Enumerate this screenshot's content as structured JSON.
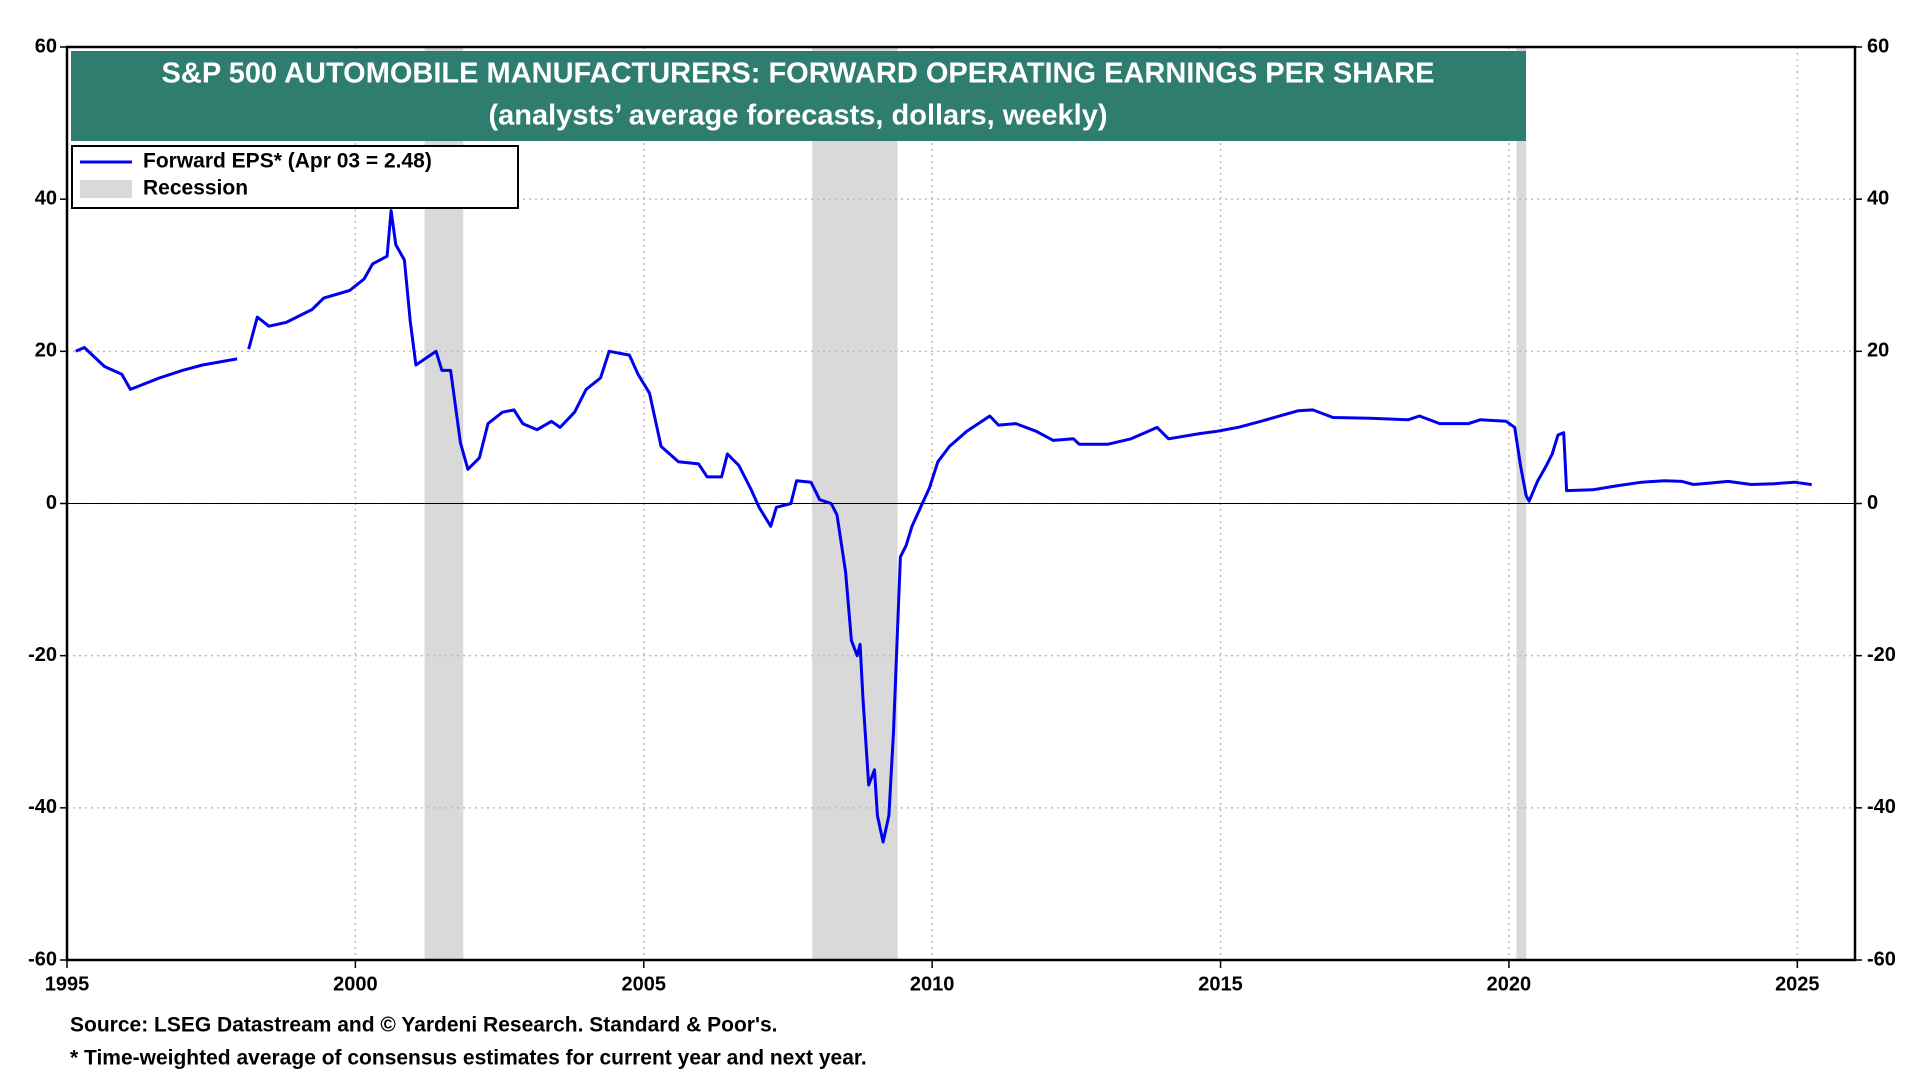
{
  "chart_data": {
    "type": "line",
    "title": "S&P 500 AUTOMOBILE MANUFACTURERS: FORWARD OPERATING EARNINGS PER SHARE",
    "subtitle": "(analysts’ average forecasts, dollars,  weekly)",
    "notes": [
      "Source: LSEG Datastream and © Yardeni Research. Standard & Poor's.",
      "* Time-weighted average of consensus estimates for current year and next year."
    ],
    "xlim": [
      1995,
      2026
    ],
    "xticks": [
      1995,
      2000,
      2005,
      2010,
      2015,
      2020,
      2025
    ],
    "ylim": [
      -60,
      60
    ],
    "yticks": [
      -60,
      -40,
      -20,
      0,
      20,
      40,
      60
    ],
    "y2lim": [
      -60,
      60
    ],
    "y2ticks": [
      -60,
      -40,
      -20,
      0,
      20,
      40,
      60
    ],
    "grid": true,
    "legend": "upper left",
    "recession_name": "Recession",
    "recession_color": "#d9d9d9",
    "recessions": [
      {
        "start": 2001.2,
        "end": 2001.87
      },
      {
        "start": 2007.92,
        "end": 2009.4
      },
      {
        "start": 2020.13,
        "end": 2020.3
      }
    ],
    "x": [
      1995.15,
      1995.3,
      1995.65,
      1995.95,
      1996.1,
      1996.6,
      1997.0,
      1997.35,
      1997.95,
      1998.05,
      1998.15,
      1998.3,
      1998.5,
      1998.8,
      1999.25,
      1999.45,
      1999.9,
      2000.15,
      2000.3,
      2000.55,
      2000.62,
      2000.7,
      2000.85,
      2000.95,
      2001.05,
      2001.4,
      2001.5,
      2001.65,
      2001.75,
      2001.82,
      2001.95,
      2002.15,
      2002.3,
      2002.55,
      2002.75,
      2002.9,
      2003.15,
      2003.4,
      2003.55,
      2003.8,
      2004.0,
      2004.25,
      2004.4,
      2004.75,
      2004.9,
      2005.1,
      2005.3,
      2005.6,
      2005.95,
      2006.1,
      2006.35,
      2006.45,
      2006.65,
      2006.85,
      2007.0,
      2007.2,
      2007.3,
      2007.55,
      2007.65,
      2007.9,
      2008.05,
      2008.25,
      2008.35,
      2008.5,
      2008.6,
      2008.7,
      2008.75,
      2008.8,
      2008.9,
      2009.0,
      2009.05,
      2009.15,
      2009.25,
      2009.33,
      2009.45,
      2009.55,
      2009.65,
      2009.8,
      2009.95,
      2010.1,
      2010.3,
      2010.6,
      2010.8,
      2011.0,
      2011.15,
      2011.45,
      2011.8,
      2012.1,
      2012.45,
      2012.55,
      2013.05,
      2013.45,
      2013.9,
      2014.1,
      2014.65,
      2014.95,
      2015.3,
      2015.7,
      2016.35,
      2016.6,
      2016.95,
      2017.6,
      2018.25,
      2018.45,
      2018.8,
      2019.3,
      2019.5,
      2019.95,
      2020.1,
      2020.2,
      2020.3,
      2020.35,
      2020.5,
      2020.65,
      2020.75,
      2020.85,
      2020.95,
      2021.0,
      2021.45,
      2021.85,
      2022.3,
      2022.7,
      2023.0,
      2023.2,
      2023.5,
      2023.8,
      2024.2,
      2024.6,
      2024.95,
      2025.25
    ],
    "series": [
      {
        "name": "Forward EPS* (Apr 03 = 2.48)",
        "color": "#0000ee",
        "values": [
          20,
          20.5,
          18,
          17,
          15,
          16.5,
          17.5,
          18.2,
          19,
          null,
          20.3,
          24.5,
          23.3,
          23.8,
          25.5,
          27,
          28,
          29.5,
          31.5,
          32.5,
          38.5,
          34,
          32,
          24,
          18.2,
          20,
          17.5,
          17.5,
          12,
          8,
          4.5,
          6,
          10.5,
          12,
          12.3,
          10.5,
          9.7,
          10.8,
          10,
          12,
          15,
          16.5,
          20,
          19.5,
          17,
          14.5,
          7.5,
          5.5,
          5.2,
          3.5,
          3.5,
          6.5,
          5,
          2,
          -0.5,
          -3,
          -0.5,
          0,
          3,
          2.8,
          0.5,
          0,
          -1.5,
          -9,
          -18,
          -20,
          -18.5,
          -25.5,
          -37,
          -35,
          -41,
          -44.5,
          -41,
          -30,
          -7,
          -5.5,
          -3,
          -0.5,
          2,
          5.5,
          7.5,
          9.5,
          10.5,
          11.5,
          10.3,
          10.5,
          9.5,
          8.3,
          8.5,
          7.8,
          7.8,
          8.5,
          10,
          8.5,
          9.2,
          9.5,
          10,
          10.8,
          12.2,
          12.3,
          11.3,
          11.2,
          11,
          11.5,
          10.5,
          10.5,
          11,
          10.8,
          10,
          5,
          1,
          0.3,
          3,
          5,
          6.5,
          9,
          9.3,
          1.7,
          1.8,
          2.3,
          2.8,
          3,
          2.9,
          2.5,
          2.7,
          2.9,
          2.5,
          2.6,
          2.8,
          2.48
        ]
      }
    ]
  }
}
